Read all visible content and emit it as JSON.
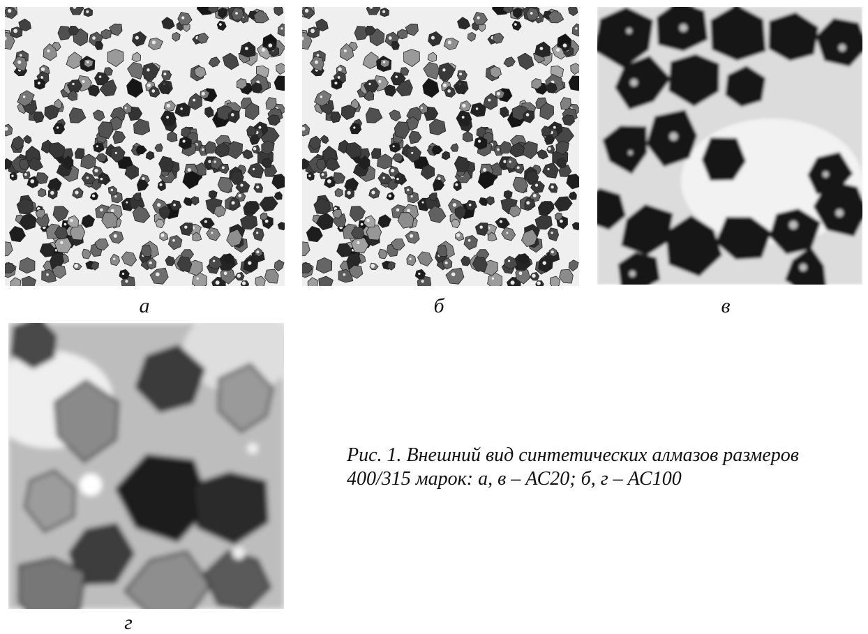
{
  "figure": {
    "panels": [
      {
        "id": "a",
        "label": "а",
        "icon": "diamond-grains-overview-icon"
      },
      {
        "id": "b",
        "label": "б",
        "icon": "diamond-grains-overview-icon"
      },
      {
        "id": "v",
        "label": "в",
        "icon": "diamond-grains-closeup-icon"
      },
      {
        "id": "g",
        "label": "г",
        "icon": "diamond-crystals-macro-icon"
      }
    ],
    "caption": "Рис. 1. Внешний вид синтетических алмазов размеров 400/315 марок: а, в – АС20; б, г – АС100"
  }
}
